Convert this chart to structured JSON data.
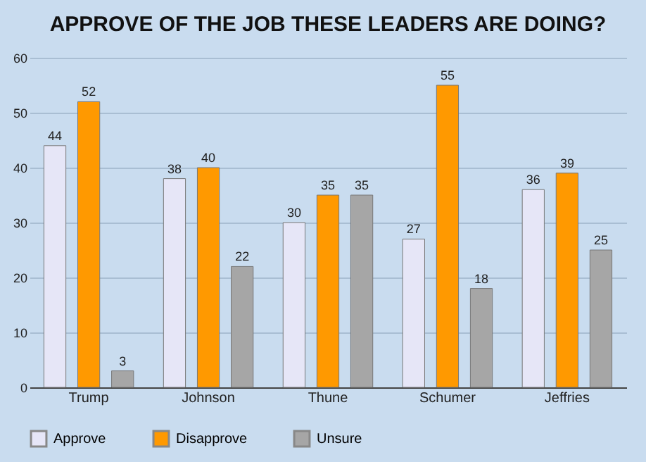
{
  "chart_data": {
    "type": "bar",
    "title": "APPROVE OF THE JOB THESE LEADERS ARE DOING?",
    "categories": [
      "Trump",
      "Johnson",
      "Thune",
      "Schumer",
      "Jeffries"
    ],
    "series": [
      {
        "name": "Approve",
        "color": "#e6e6f7",
        "values": [
          44,
          38,
          30,
          27,
          36
        ]
      },
      {
        "name": "Disapprove",
        "color": "#ff9900",
        "values": [
          52,
          40,
          35,
          55,
          39
        ]
      },
      {
        "name": "Unsure",
        "color": "#a6a6a6",
        "values": [
          3,
          22,
          35,
          18,
          25
        ]
      }
    ],
    "ylim": [
      0,
      60
    ],
    "yticks": [
      0,
      10,
      20,
      30,
      40,
      50,
      60
    ],
    "grid": "y",
    "legend": "bottom",
    "data_labels": true
  }
}
